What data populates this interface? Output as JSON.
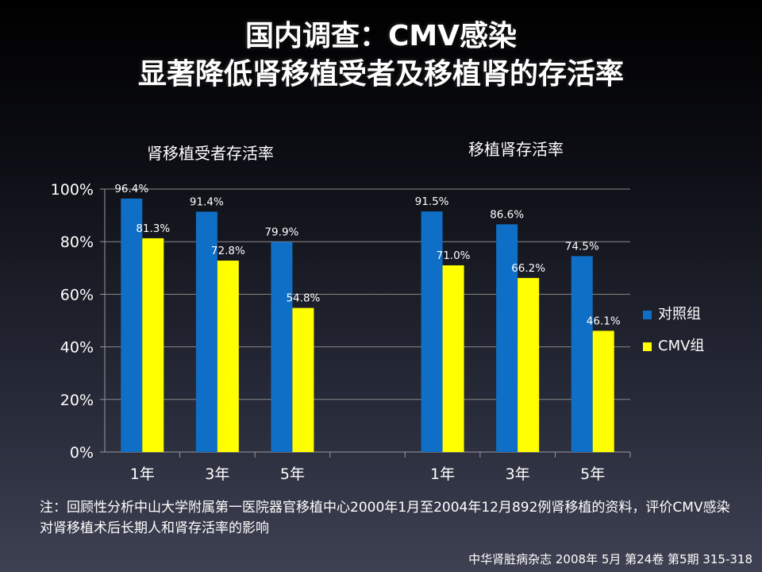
{
  "title": {
    "line1": "国内调查：CMV感染",
    "line2": "显著降低肾移植受者及移植肾的存活率"
  },
  "subtitles": {
    "left": "肾移植受者存活率",
    "right": "移植肾存活率"
  },
  "note": "注：回顾性分析中山大学附属第一医院器官移植中心2000年1月至2004年12月892例肾移植的资料，评价CMV感染对肾移植术后长期人和肾存活率的影响",
  "source": "中华肾脏病杂志 2008年 5月 第24卷 第5期 315-318",
  "chart_data": {
    "type": "bar",
    "groups": [
      "肾移植受者存活率",
      "移植肾存活率"
    ],
    "categories": [
      "1年",
      "3年",
      "5年",
      "",
      "1年",
      "3年",
      "5年"
    ],
    "series": [
      {
        "name": "对照组",
        "color": "#0f6fc6",
        "values": [
          96.4,
          91.4,
          79.9,
          null,
          91.5,
          86.6,
          74.5
        ],
        "labels": [
          "96.4%",
          "91.4%",
          "79.9%",
          "",
          "91.5%",
          "86.6%",
          "74.5%"
        ]
      },
      {
        "name": "CMV组",
        "color": "#ffff00",
        "values": [
          81.3,
          72.8,
          54.8,
          null,
          71.0,
          66.2,
          46.1
        ],
        "labels": [
          "81.3%",
          "72.8%",
          "54.8%",
          "",
          "71.0%",
          "66.2%",
          "46.1%"
        ]
      }
    ],
    "yticks": [
      "0%",
      "20%",
      "40%",
      "60%",
      "80%",
      "100%"
    ],
    "ylim": [
      0,
      100
    ],
    "grid": true,
    "legend": "right"
  }
}
